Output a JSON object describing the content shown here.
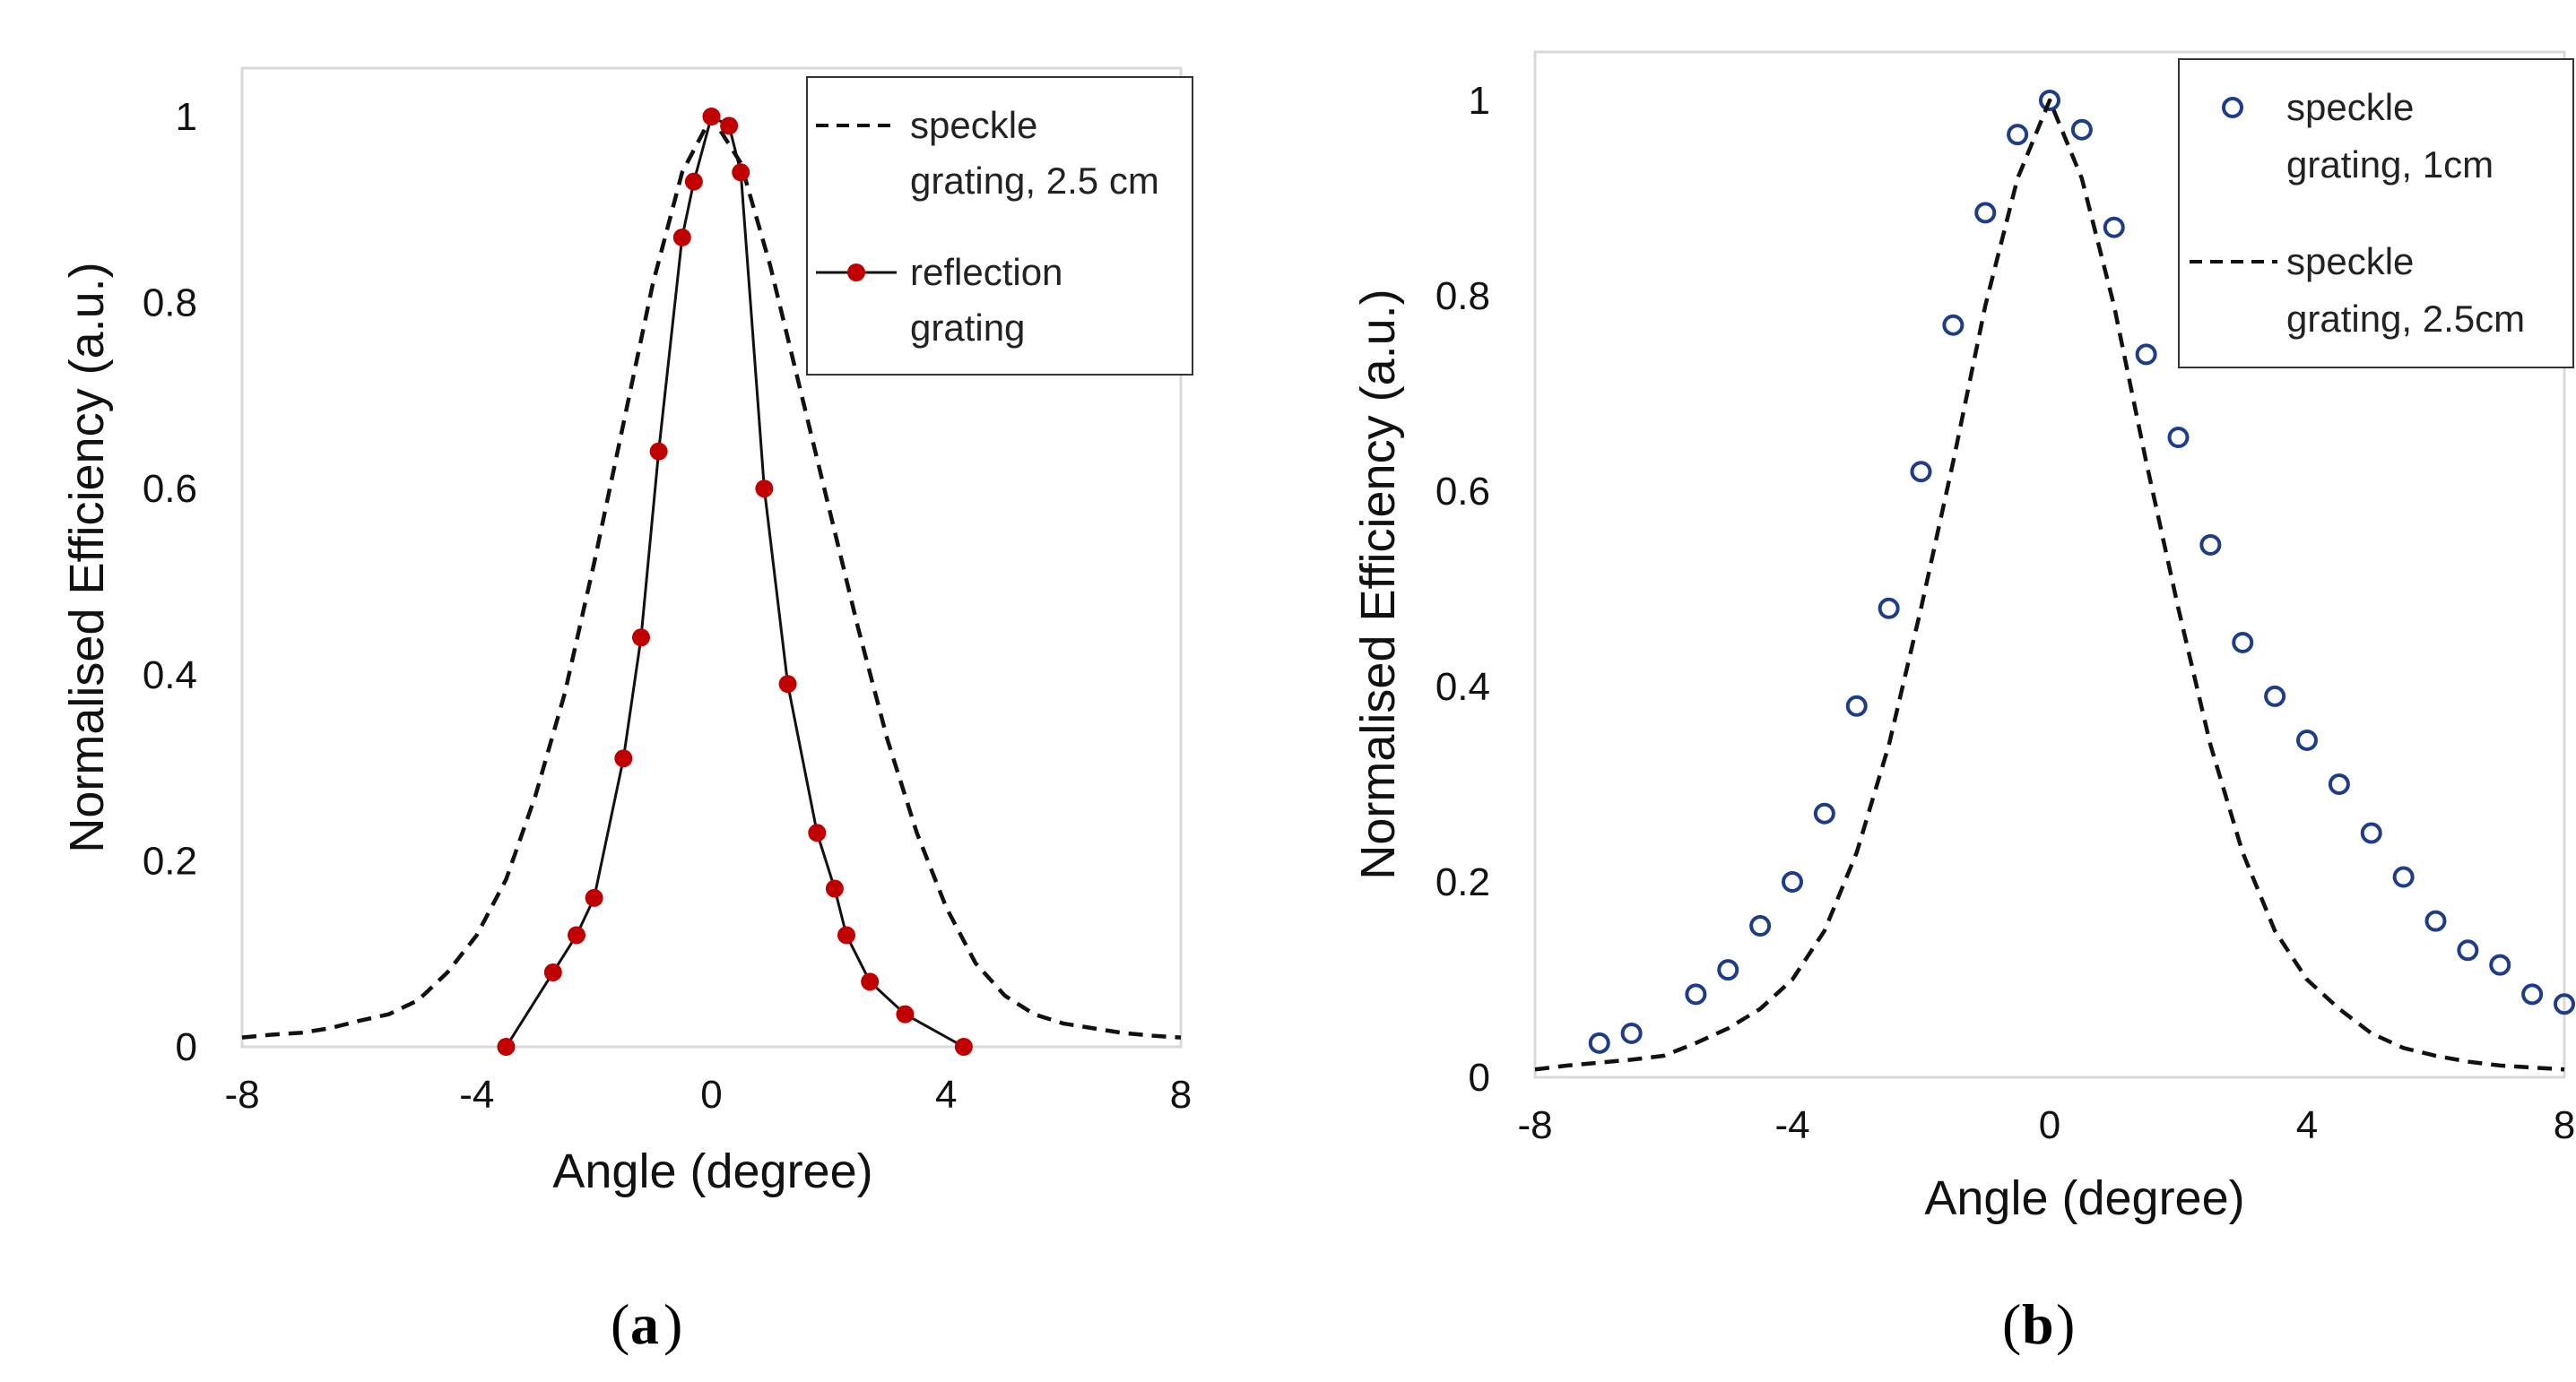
{
  "chart_data": [
    {
      "type": "line",
      "panel_label": "a",
      "xlabel": "Angle (degree)",
      "ylabel": "Normalised Efficiency (a.u.)",
      "xlim": [
        -8,
        8
      ],
      "ylim": [
        0,
        1
      ],
      "xticks": [
        "-8",
        "-4",
        "0",
        "4",
        "8"
      ],
      "yticks": [
        "0",
        "0.2",
        "0.4",
        "0.6",
        "0.8",
        "1"
      ],
      "legend_position": "top-right",
      "series": [
        {
          "name": "speckle grating, 2.5 cm",
          "legend_lines": [
            "speckle",
            "grating, 2.5 cm"
          ],
          "style": "dashed",
          "color": "#111111",
          "x": [
            -8,
            -7.5,
            -7,
            -6.5,
            -6,
            -5.5,
            -5,
            -4.5,
            -4,
            -3.5,
            -3,
            -2.5,
            -2,
            -1.5,
            -1,
            -0.5,
            0,
            0.5,
            1,
            1.5,
            2,
            2.5,
            3,
            3.5,
            4,
            4.5,
            5,
            5.5,
            6,
            6.5,
            7,
            7.5,
            8
          ],
          "y": [
            0.01,
            0.013,
            0.015,
            0.02,
            0.028,
            0.035,
            0.05,
            0.08,
            0.12,
            0.18,
            0.27,
            0.38,
            0.52,
            0.67,
            0.82,
            0.94,
            1.0,
            0.95,
            0.84,
            0.71,
            0.58,
            0.45,
            0.33,
            0.23,
            0.15,
            0.09,
            0.055,
            0.035,
            0.025,
            0.02,
            0.015,
            0.012,
            0.01
          ]
        },
        {
          "name": "reflection grating",
          "legend_lines": [
            "reflection",
            "grating"
          ],
          "style": "line-marker",
          "color": "#c00000",
          "x": [
            -3.5,
            -2.7,
            -2.3,
            -2.0,
            -1.5,
            -1.2,
            -0.9,
            -0.5,
            -0.3,
            0.0,
            0.3,
            0.5,
            0.9,
            1.3,
            1.8,
            2.1,
            2.3,
            2.7,
            3.3,
            4.3
          ],
          "y": [
            0.0,
            0.08,
            0.12,
            0.16,
            0.31,
            0.44,
            0.64,
            0.87,
            0.93,
            1.0,
            0.99,
            0.94,
            0.6,
            0.39,
            0.23,
            0.17,
            0.12,
            0.07,
            0.035,
            0.0
          ]
        }
      ]
    },
    {
      "type": "scatter",
      "panel_label": "b",
      "xlabel": "Angle (degree)",
      "ylabel": "Normalised Efficiency (a.u.)",
      "xlim": [
        -8,
        8
      ],
      "ylim": [
        0,
        1
      ],
      "xticks": [
        "-8",
        "-4",
        "0",
        "4",
        "8"
      ],
      "yticks": [
        "0",
        "0.2",
        "0.4",
        "0.6",
        "0.8",
        "1"
      ],
      "legend_position": "top-right",
      "series": [
        {
          "name": "speckle grating, 1cm",
          "legend_lines": [
            "speckle",
            "grating, 1cm"
          ],
          "style": "open-circle",
          "color": "#1f3c88",
          "x": [
            -7,
            -6.5,
            -5.5,
            -5,
            -4.5,
            -4,
            -3.5,
            -3,
            -2.5,
            -2,
            -1.5,
            -1,
            -0.5,
            0,
            0.5,
            1,
            1.5,
            2,
            2.5,
            3,
            3.5,
            4,
            4.5,
            5,
            5.5,
            6,
            6.5,
            7,
            7.5,
            8
          ],
          "y": [
            0.035,
            0.045,
            0.085,
            0.11,
            0.155,
            0.2,
            0.27,
            0.38,
            0.48,
            0.62,
            0.77,
            0.885,
            0.965,
            1.0,
            0.97,
            0.87,
            0.74,
            0.655,
            0.545,
            0.445,
            0.39,
            0.345,
            0.3,
            0.25,
            0.205,
            0.16,
            0.13,
            0.115,
            0.085,
            0.075
          ]
        },
        {
          "name": "speckle grating, 2.5cm",
          "legend_lines": [
            "speckle",
            "grating, 2.5cm"
          ],
          "style": "dashed",
          "color": "#111111",
          "x": [
            -8,
            -7.5,
            -7,
            -6.5,
            -6,
            -5.5,
            -5,
            -4.5,
            -4,
            -3.5,
            -3,
            -2.5,
            -2,
            -1.5,
            -1,
            -0.5,
            0,
            0.5,
            1,
            1.5,
            2,
            2.5,
            3,
            3.5,
            4,
            4.5,
            5,
            5.5,
            6,
            6.5,
            7,
            7.5,
            8
          ],
          "y": [
            0.008,
            0.012,
            0.015,
            0.018,
            0.022,
            0.035,
            0.05,
            0.07,
            0.1,
            0.15,
            0.23,
            0.34,
            0.48,
            0.63,
            0.79,
            0.92,
            1.0,
            0.92,
            0.79,
            0.63,
            0.48,
            0.34,
            0.23,
            0.15,
            0.1,
            0.07,
            0.045,
            0.03,
            0.022,
            0.016,
            0.012,
            0.01,
            0.008
          ]
        }
      ]
    }
  ]
}
